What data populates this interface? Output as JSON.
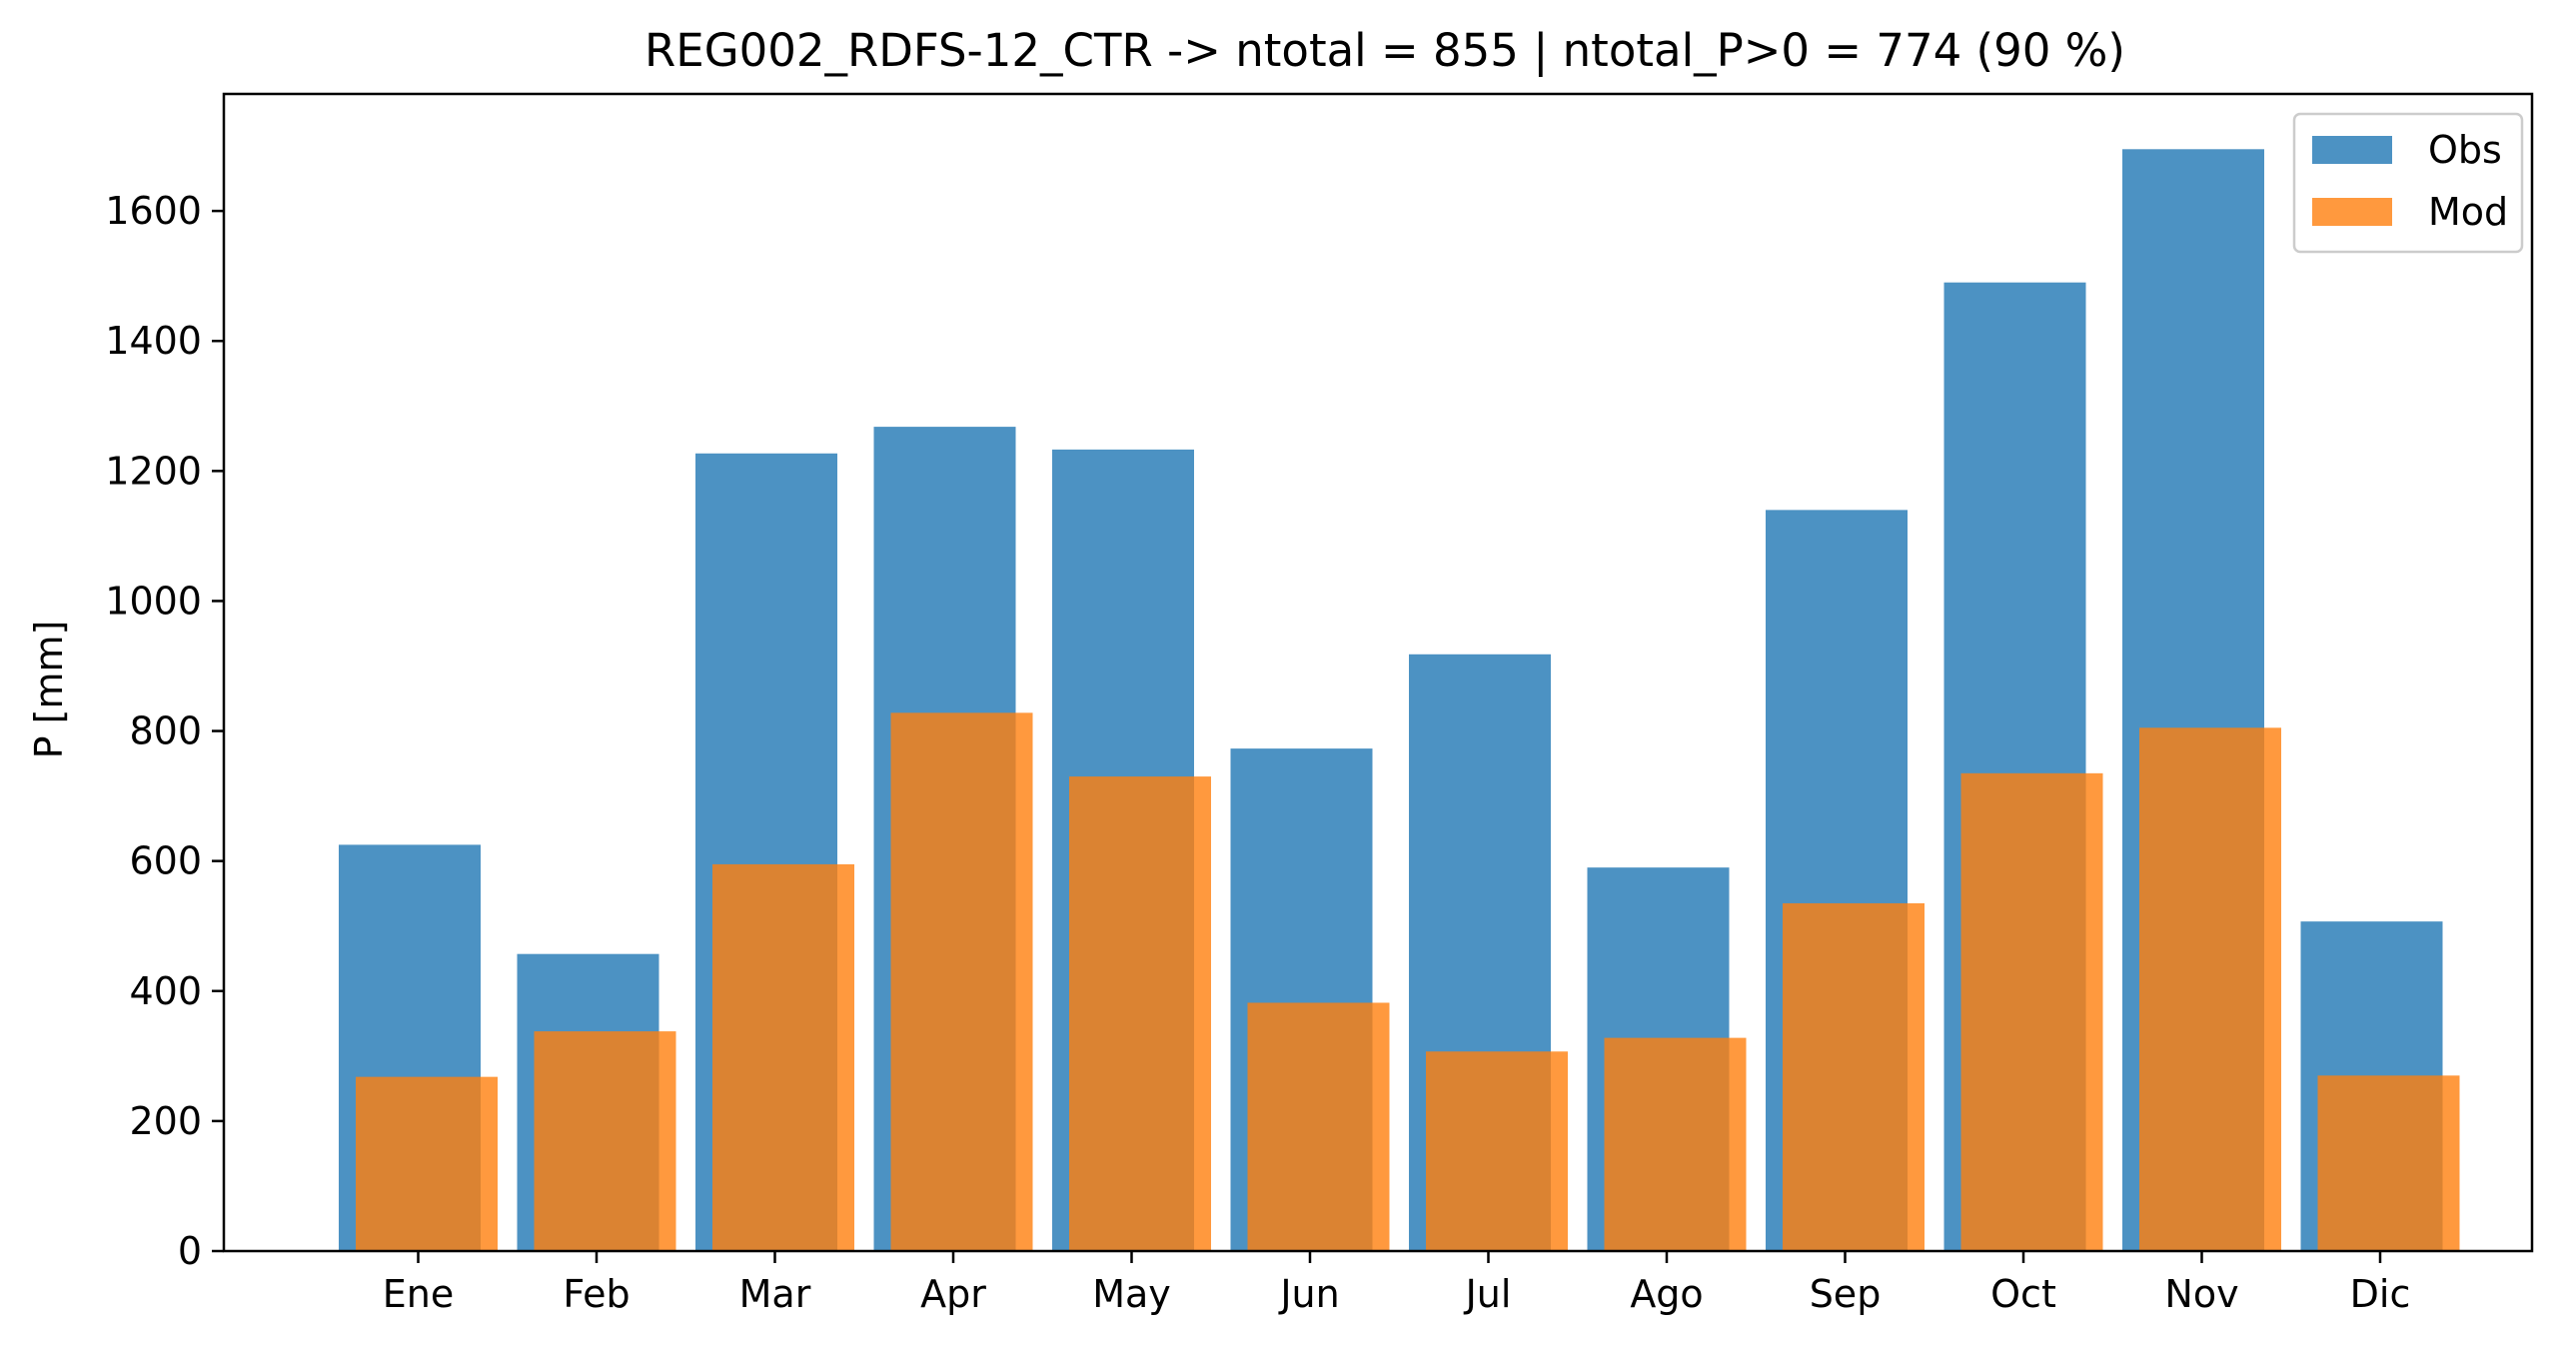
{
  "chart_data": {
    "type": "bar",
    "title": "REG002_RDFS-12_CTR -> ntotal = 855 | ntotal_P>0 = 774 (90 %)",
    "xlabel": "",
    "ylabel": "P [mm]",
    "categories": [
      "Ene",
      "Feb",
      "Mar",
      "Apr",
      "May",
      "Jun",
      "Jul",
      "Ago",
      "Sep",
      "Oct",
      "Nov",
      "Dic"
    ],
    "ylim": [
      0,
      1780
    ],
    "yticks": [
      0,
      200,
      400,
      600,
      800,
      1000,
      1200,
      1400,
      1600
    ],
    "ytick_labels": [
      "0",
      "200",
      "400",
      "600",
      "800",
      "1000",
      "1200",
      "1400",
      "1600"
    ],
    "grid": false,
    "legend_position": "top-right",
    "series": [
      {
        "name": "Obs",
        "color": "#1f77b4",
        "opacity": 0.8,
        "values": [
          625,
          457,
          1227,
          1268,
          1233,
          773,
          918,
          590,
          1140,
          1490,
          1695,
          507
        ]
      },
      {
        "name": "Mod",
        "color": "#ff7f0e",
        "opacity": 0.8,
        "values": [
          268,
          338,
          595,
          828,
          730,
          382,
          307,
          328,
          535,
          735,
          805,
          270
        ]
      }
    ]
  }
}
